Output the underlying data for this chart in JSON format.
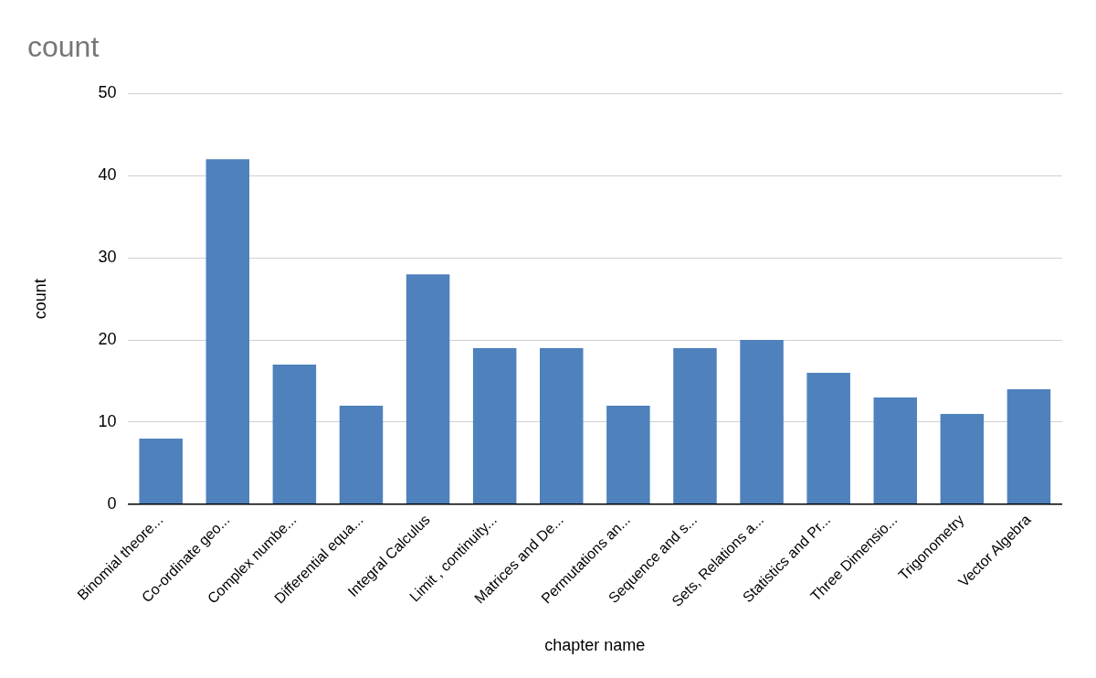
{
  "chart_data": {
    "type": "bar",
    "title": "count",
    "xlabel": "chapter name",
    "ylabel": "count",
    "categories": [
      "Binomial theore...",
      "Co-ordinate geo...",
      "Complex numbe...",
      "Differential equa...",
      "Integral Calculus",
      "Limit , continuity...",
      "Matrices and De...",
      "Permutations an...",
      "Sequence and s...",
      "Sets, Relations a...",
      "Statistics and Pr...",
      "Three Dimensio...",
      "Trigonometry",
      "Vector Algebra"
    ],
    "values": [
      8,
      42,
      17,
      12,
      28,
      19,
      19,
      12,
      19,
      20,
      16,
      13,
      11,
      14
    ],
    "color": "#4f81bd",
    "ylim": [
      0,
      50
    ],
    "yticks": [
      0,
      10,
      20,
      30,
      40,
      50
    ],
    "grid": "y",
    "legend": false
  }
}
